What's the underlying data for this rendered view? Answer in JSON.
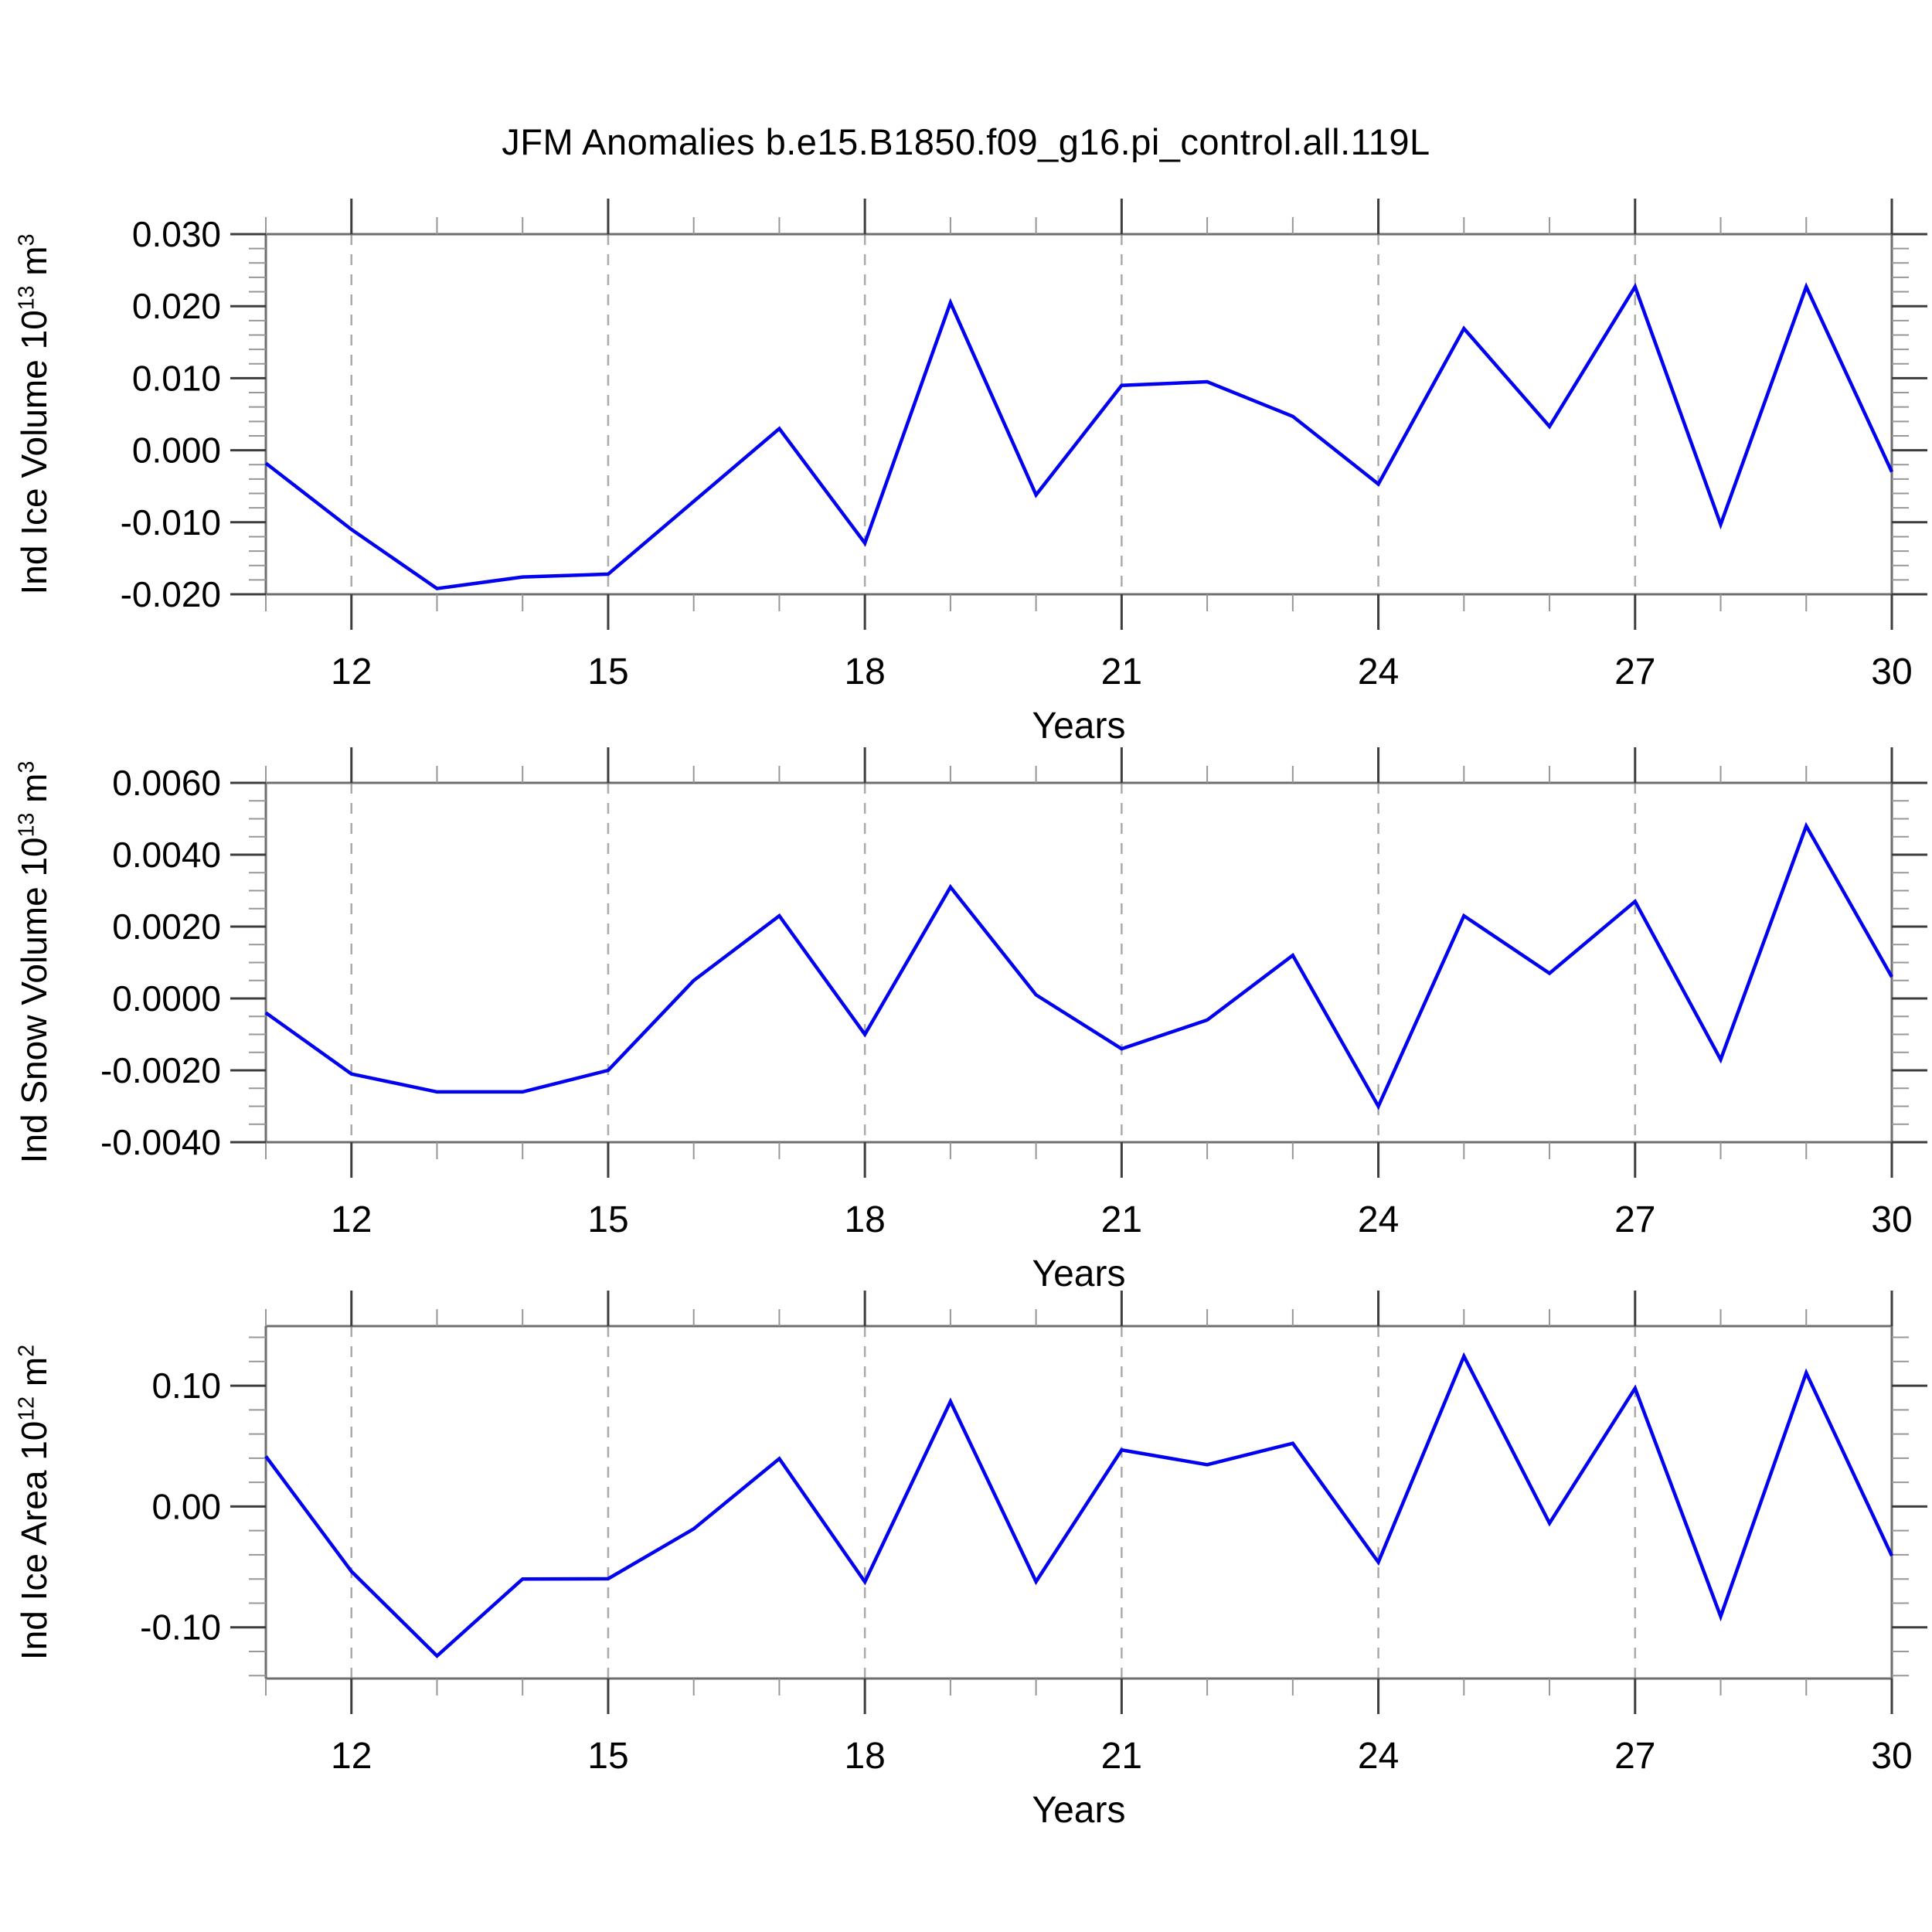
{
  "title": "JFM Anomalies b.e15.B1850.f09_g16.pi_control.all.119L",
  "colors": {
    "line": "#0202f0",
    "axis": "#6e6e6e",
    "tick_major": "#3d3d3d",
    "tick_minor": "#979797",
    "grid": "#aaaaaa",
    "text": "#000000",
    "background": "#ffffff"
  },
  "x_axis": {
    "label": "Years",
    "min": 11,
    "max": 30,
    "major_ticks": [
      12,
      15,
      18,
      21,
      24,
      27,
      30
    ],
    "minor_step": 1,
    "gridline_years": [
      12,
      15,
      18,
      21,
      24,
      27
    ]
  },
  "chart_data": [
    {
      "type": "line",
      "name": "ice-volume",
      "ylabel": {
        "prefix": "Ind Ice Volume 10",
        "exp": "13",
        "unit": "m",
        "unit_exp": "3"
      },
      "xlabel": "Years",
      "ylim": [
        -0.02,
        0.03
      ],
      "ytick_values": [
        0.03,
        0.02,
        0.01,
        0.0,
        -0.01,
        -0.02
      ],
      "ytick_labels": [
        "0.030",
        "0.020",
        "0.010",
        "0.000",
        "-0.010",
        "-0.020"
      ],
      "y_minor_step": 0.002,
      "x": [
        11,
        12,
        13,
        14,
        15,
        16,
        17,
        18,
        19,
        20,
        21,
        22,
        23,
        24,
        25,
        26,
        27,
        28,
        29,
        30
      ],
      "values": [
        -0.0018,
        -0.011,
        -0.0192,
        -0.0176,
        -0.0172,
        -0.0071,
        0.003,
        -0.0129,
        0.0205,
        -0.0062,
        0.009,
        0.0095,
        0.0047,
        -0.0047,
        0.0169,
        0.0033,
        0.0227,
        -0.0103,
        0.0227,
        -0.003
      ]
    },
    {
      "type": "line",
      "name": "snow-volume",
      "ylabel": {
        "prefix": "Ind Snow Volume 10",
        "exp": "13",
        "unit": "m",
        "unit_exp": "3"
      },
      "xlabel": "Years",
      "ylim": [
        -0.004,
        0.006
      ],
      "ytick_values": [
        0.006,
        0.004,
        0.002,
        0.0,
        -0.002,
        -0.004
      ],
      "ytick_labels": [
        "0.0060",
        "0.0040",
        "0.0020",
        "0.0000",
        "-0.0020",
        "-0.0040"
      ],
      "y_minor_step": 0.0005,
      "x": [
        11,
        12,
        13,
        14,
        15,
        16,
        17,
        18,
        19,
        20,
        21,
        22,
        23,
        24,
        25,
        26,
        27,
        28,
        29,
        30
      ],
      "values": [
        -0.0004,
        -0.0021,
        -0.0026,
        -0.0026,
        -0.002,
        0.0005,
        0.0023,
        -0.001,
        0.0031,
        0.0001,
        -0.0014,
        -0.0006,
        0.0012,
        -0.003,
        0.0023,
        0.0007,
        0.0027,
        -0.0017,
        0.0048,
        0.0006
      ]
    },
    {
      "type": "line",
      "name": "ice-area",
      "ylabel": {
        "prefix": "Ind Ice Area 10",
        "exp": "12",
        "unit": "m",
        "unit_exp": "2"
      },
      "xlabel": "Years",
      "ylim": [
        -0.1424,
        0.1493
      ],
      "ytick_values": [
        0.1,
        0.0,
        -0.1
      ],
      "ytick_labels": [
        "0.10",
        "0.00",
        "-0.10"
      ],
      "y_minor_step": 0.02,
      "x": [
        11,
        12,
        13,
        14,
        15,
        16,
        17,
        18,
        19,
        20,
        21,
        22,
        23,
        24,
        25,
        26,
        27,
        28,
        29,
        30
      ],
      "values": [
        0.0415,
        -0.0537,
        -0.1237,
        -0.06,
        -0.0598,
        -0.0185,
        0.0396,
        -0.0624,
        0.0869,
        -0.0622,
        0.0468,
        0.0346,
        0.0523,
        -0.0461,
        0.1244,
        -0.0138,
        0.0979,
        -0.091,
        0.1106,
        -0.0408
      ]
    }
  ]
}
